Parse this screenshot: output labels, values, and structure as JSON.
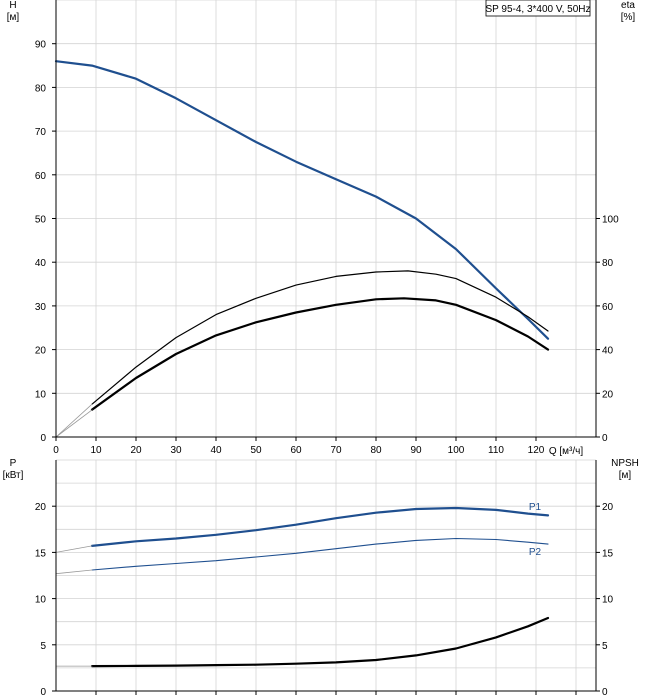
{
  "chart_data": [
    {
      "type": "line",
      "title": "",
      "legend_box": "SP 95-4, 3*400 V, 50Hz",
      "xlabel": "Q [м³/ч]",
      "left_axis": {
        "name": "H",
        "unit": "[м]",
        "lim": [
          0,
          100
        ],
        "ticks": [
          0,
          10,
          20,
          30,
          40,
          50,
          60,
          70,
          80,
          90
        ]
      },
      "right_axis": {
        "name": "eta",
        "unit": "[%]",
        "lim": [
          0,
          200
        ],
        "ticks": [
          0,
          20,
          40,
          60,
          80,
          100
        ]
      },
      "xlim": [
        0,
        135
      ],
      "xticks": [
        0,
        10,
        20,
        30,
        40,
        50,
        60,
        70,
        80,
        90,
        100,
        110,
        120
      ],
      "grid": true,
      "series": [
        {
          "axis": "left",
          "color": "#1f4f8f",
          "width": 2.2,
          "x": [
            0,
            9,
            20,
            30,
            40,
            50,
            60,
            70,
            80,
            90,
            100,
            110,
            118,
            123
          ],
          "y": [
            86,
            85,
            82,
            77.5,
            72.5,
            67.5,
            63,
            59,
            55,
            50,
            43,
            34,
            27,
            22.5
          ]
        },
        {
          "axis": "right",
          "color": "#000000",
          "width": 1.2,
          "x": [
            9,
            20,
            30,
            40,
            50,
            60,
            70,
            80,
            88,
            95,
            100,
            110,
            118,
            123
          ],
          "y": [
            15,
            32,
            45.5,
            56,
            63.5,
            69.5,
            73.5,
            75.5,
            76,
            74.5,
            72.5,
            64,
            55,
            48.5
          ]
        },
        {
          "axis": "right",
          "color": "#000000",
          "width": 2.2,
          "x": [
            9,
            20,
            30,
            40,
            50,
            60,
            70,
            80,
            87,
            95,
            100,
            110,
            118,
            123
          ],
          "y": [
            12.5,
            27,
            38,
            46.5,
            52.5,
            57,
            60.5,
            63,
            63.5,
            62.5,
            60.5,
            53.5,
            46,
            40
          ]
        },
        {
          "axis": "left",
          "color": "#999999",
          "width": 0.8,
          "x": [
            0,
            9
          ],
          "y": [
            0,
            7.5
          ]
        },
        {
          "axis": "left",
          "color": "#999999",
          "width": 0.8,
          "x": [
            0,
            9
          ],
          "y": [
            0,
            6.2
          ]
        }
      ]
    },
    {
      "type": "line",
      "title": "",
      "left_axis": {
        "name": "P",
        "unit": "[кВт]",
        "lim": [
          0,
          25
        ],
        "ticks": [
          0,
          5,
          10,
          15,
          20
        ]
      },
      "right_axis": {
        "name": "NPSH",
        "unit": "[м]",
        "lim": [
          0,
          25
        ],
        "ticks": [
          0,
          5,
          10,
          15,
          20
        ]
      },
      "xlim": [
        0,
        135
      ],
      "grid": true,
      "series": [
        {
          "name": "P1",
          "color": "#1f4f8f",
          "width": 2.2,
          "x": [
            9,
            20,
            30,
            40,
            50,
            60,
            70,
            80,
            90,
            100,
            110,
            118,
            123
          ],
          "y": [
            15.7,
            16.2,
            16.5,
            16.9,
            17.4,
            18.0,
            18.7,
            19.3,
            19.7,
            19.8,
            19.6,
            19.2,
            19.0
          ]
        },
        {
          "name": "P2",
          "color": "#1f4f8f",
          "width": 1.1,
          "x": [
            9,
            20,
            30,
            40,
            50,
            60,
            70,
            80,
            90,
            100,
            110,
            118,
            123
          ],
          "y": [
            13.1,
            13.5,
            13.8,
            14.1,
            14.5,
            14.9,
            15.4,
            15.9,
            16.3,
            16.5,
            16.4,
            16.1,
            15.9
          ]
        },
        {
          "color": "#999999",
          "width": 0.8,
          "x": [
            0,
            9
          ],
          "y": [
            15.0,
            15.7
          ]
        },
        {
          "color": "#999999",
          "width": 0.8,
          "x": [
            0,
            9
          ],
          "y": [
            12.7,
            13.1
          ]
        },
        {
          "axis": "right",
          "color": "#000000",
          "width": 2.2,
          "x": [
            9,
            20,
            30,
            40,
            50,
            60,
            70,
            80,
            90,
            100,
            110,
            118,
            123
          ],
          "y": [
            2.7,
            2.72,
            2.75,
            2.8,
            2.85,
            2.95,
            3.1,
            3.35,
            3.85,
            4.6,
            5.8,
            7.0,
            7.9
          ]
        },
        {
          "axis": "right",
          "color": "#999999",
          "width": 0.8,
          "x": [
            0,
            9
          ],
          "y": [
            2.7,
            2.7
          ]
        }
      ]
    }
  ]
}
